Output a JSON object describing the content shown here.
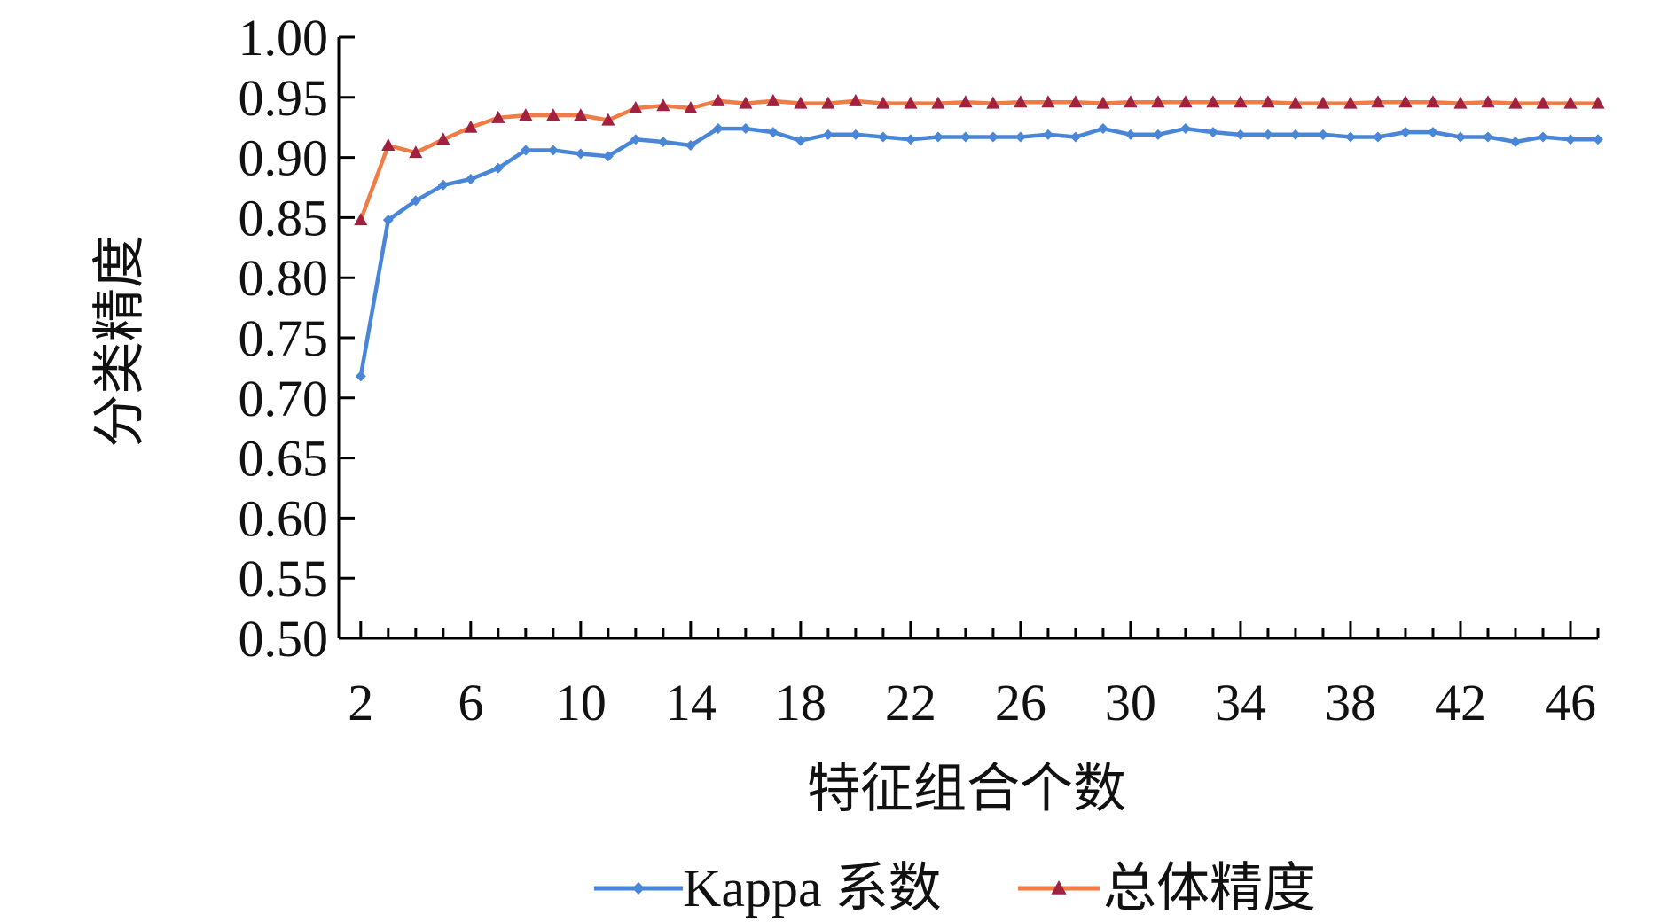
{
  "chart_data": {
    "type": "line",
    "xlabel": "特征组合个数",
    "ylabel": "分类精度",
    "xlim": [
      2,
      47
    ],
    "ylim": [
      0.5,
      1.0
    ],
    "x_ticks": [
      2,
      6,
      10,
      14,
      18,
      22,
      26,
      30,
      34,
      38,
      42,
      46
    ],
    "y_ticks": [
      "0.50",
      "0.55",
      "0.60",
      "0.65",
      "0.70",
      "0.75",
      "0.80",
      "0.85",
      "0.90",
      "0.95",
      "1.00"
    ],
    "grid": false,
    "legend_position": "bottom",
    "x": [
      2,
      3,
      4,
      5,
      6,
      7,
      8,
      9,
      10,
      11,
      12,
      13,
      14,
      15,
      16,
      17,
      18,
      19,
      20,
      21,
      22,
      23,
      24,
      25,
      26,
      27,
      28,
      29,
      30,
      31,
      32,
      33,
      34,
      35,
      36,
      37,
      38,
      39,
      40,
      41,
      42,
      43,
      44,
      45,
      46,
      47
    ],
    "series": [
      {
        "name": "Kappa 系数",
        "color": "#4a86d8",
        "marker": "diamond",
        "values": [
          0.718,
          0.848,
          0.864,
          0.877,
          0.882,
          0.891,
          0.906,
          0.906,
          0.903,
          0.901,
          0.915,
          0.913,
          0.91,
          0.924,
          0.924,
          0.921,
          0.914,
          0.919,
          0.919,
          0.917,
          0.915,
          0.917,
          0.917,
          0.917,
          0.917,
          0.919,
          0.917,
          0.924,
          0.919,
          0.919,
          0.924,
          0.921,
          0.919,
          0.919,
          0.919,
          0.919,
          0.917,
          0.917,
          0.921,
          0.921,
          0.917,
          0.917,
          0.913,
          0.917,
          0.915,
          0.915
        ]
      },
      {
        "name": "总体精度",
        "color": "#f07d47",
        "marker_color": "#a02240",
        "marker": "triangle",
        "values": [
          0.848,
          0.91,
          0.904,
          0.915,
          0.925,
          0.933,
          0.935,
          0.935,
          0.935,
          0.931,
          0.941,
          0.943,
          0.941,
          0.947,
          0.945,
          0.947,
          0.945,
          0.945,
          0.947,
          0.945,
          0.945,
          0.945,
          0.946,
          0.945,
          0.946,
          0.946,
          0.946,
          0.945,
          0.946,
          0.946,
          0.946,
          0.946,
          0.946,
          0.946,
          0.945,
          0.945,
          0.945,
          0.946,
          0.946,
          0.946,
          0.945,
          0.946,
          0.945,
          0.945,
          0.945,
          0.945
        ]
      }
    ]
  }
}
